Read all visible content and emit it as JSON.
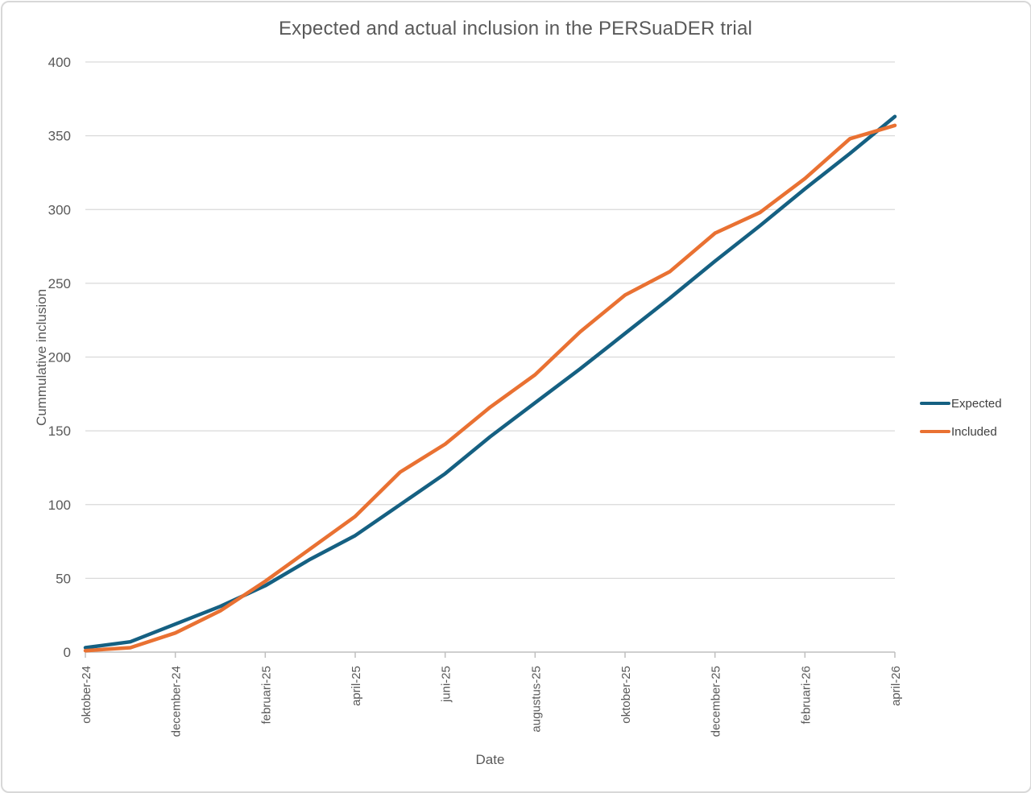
{
  "chart_data": {
    "type": "line",
    "title": "Expected and actual inclusion in the PERSuaDER trial",
    "xlabel": "Date",
    "ylabel": "Cummulative inclusion",
    "ylim": [
      0,
      400
    ],
    "y_ticks": [
      0,
      50,
      100,
      150,
      200,
      250,
      300,
      350,
      400
    ],
    "x_tick_labels": [
      "oktober-24",
      "december-24",
      "februari-25",
      "april-25",
      "juni-25",
      "augustus-25",
      "oktober-25",
      "december-25",
      "februari-26",
      "april-26"
    ],
    "x_tick_step": 2,
    "n_points": 19,
    "grid": "horizontal",
    "legend_position": "right",
    "series": [
      {
        "name": "Expected",
        "color": "#156082",
        "values": [
          3,
          7,
          19,
          31,
          45,
          63,
          79,
          100,
          121,
          146,
          169,
          192,
          216,
          240,
          265,
          289,
          314,
          338,
          363
        ]
      },
      {
        "name": "Included",
        "color": "#E97132",
        "values": [
          1,
          3,
          13,
          28,
          48,
          70,
          92,
          122,
          141,
          166,
          188,
          217,
          242,
          258,
          284,
          298,
          321,
          348,
          357
        ]
      }
    ],
    "colors": {
      "title_text": "#595959",
      "axis_text": "#595959",
      "legend_text": "#404040",
      "gridline": "#d9d9d9",
      "axis_line": "#bfbfbf"
    }
  }
}
